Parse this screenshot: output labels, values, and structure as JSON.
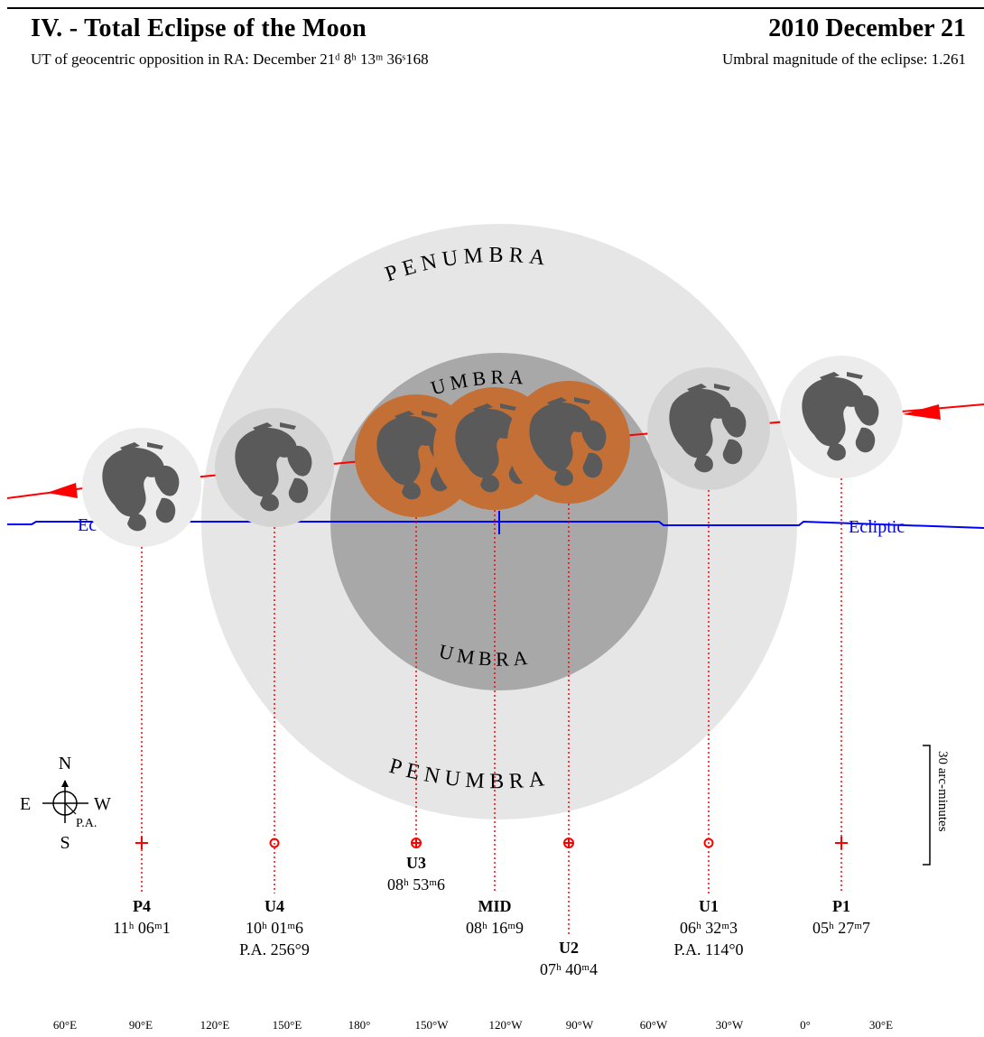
{
  "header": {
    "title": "IV. - Total Eclipse of the Moon",
    "date": "2010 December 21",
    "opposition_text": "UT of geocentric opposition in RA: December 21ᵈ 8ʰ 13ᵐ 36ˢ168",
    "magnitude_text": "Umbral magnitude of the eclipse: 1.261"
  },
  "shadow_labels": {
    "penumbra_top": "PENUMBRA",
    "penumbra_bottom": "PENUMBRA",
    "umbra_top": "UMBRA",
    "umbra_bottom": "UMBRA"
  },
  "ecliptic_label": "Ecliptic",
  "compass": {
    "n": "N",
    "s": "S",
    "e": "E",
    "w": "W",
    "pa": "P.A."
  },
  "scale_label": "30 arc-minutes",
  "contacts": [
    {
      "id": "P4",
      "time": "11ʰ 06ᵐ1",
      "pa": ""
    },
    {
      "id": "U4",
      "time": "10ʰ 01ᵐ6",
      "pa": "P.A. 256°9"
    },
    {
      "id": "U3",
      "time": "08ʰ 53ᵐ6",
      "pa": ""
    },
    {
      "id": "MID",
      "time": "08ʰ 16ᵐ9",
      "pa": ""
    },
    {
      "id": "U2",
      "time": "07ʰ 40ᵐ4",
      "pa": ""
    },
    {
      "id": "U1",
      "time": "06ʰ 32ᵐ3",
      "pa": "P.A. 114°0"
    },
    {
      "id": "P1",
      "time": "05ʰ 27ᵐ7",
      "pa": ""
    }
  ],
  "longitudes": [
    "60°E",
    "90°E",
    "120°E",
    "150°E",
    "180°",
    "150°W",
    "120°W",
    "90°W",
    "60°W",
    "30°W",
    "0°",
    "30°E"
  ],
  "colors": {
    "penumbra": "#e6e6e6",
    "umbra": "#a8a8a8",
    "eclipsed_moon": "#c46f35",
    "moon_disk": "#ececec",
    "maria": "#5a5a5a",
    "ecliptic": "#0000ff",
    "path": "#ff0000"
  }
}
